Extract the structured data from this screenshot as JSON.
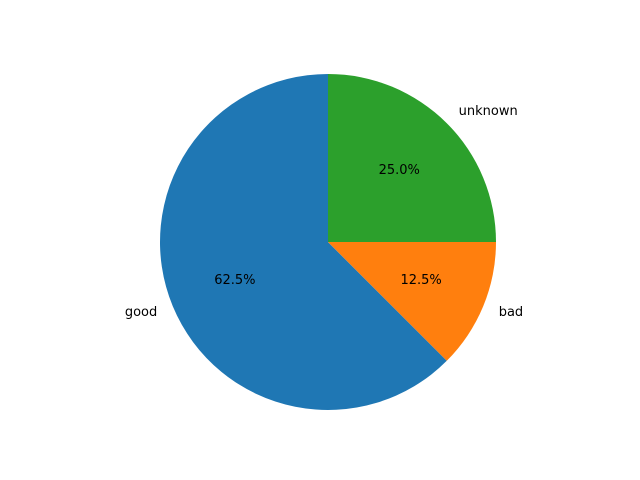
{
  "chart_data": {
    "type": "pie",
    "title": "",
    "slices": [
      {
        "label": "good",
        "value": 62.5,
        "pct_label": "62.5%",
        "color": "#1f77b4"
      },
      {
        "label": "bad",
        "value": 12.5,
        "pct_label": "12.5%",
        "color": "#ff7f0e"
      },
      {
        "label": "unknown",
        "value": 25.0,
        "pct_label": "25.0%",
        "color": "#2ca02c"
      }
    ],
    "start_angle_deg": 90,
    "direction": "counterclockwise",
    "legend": "none"
  }
}
